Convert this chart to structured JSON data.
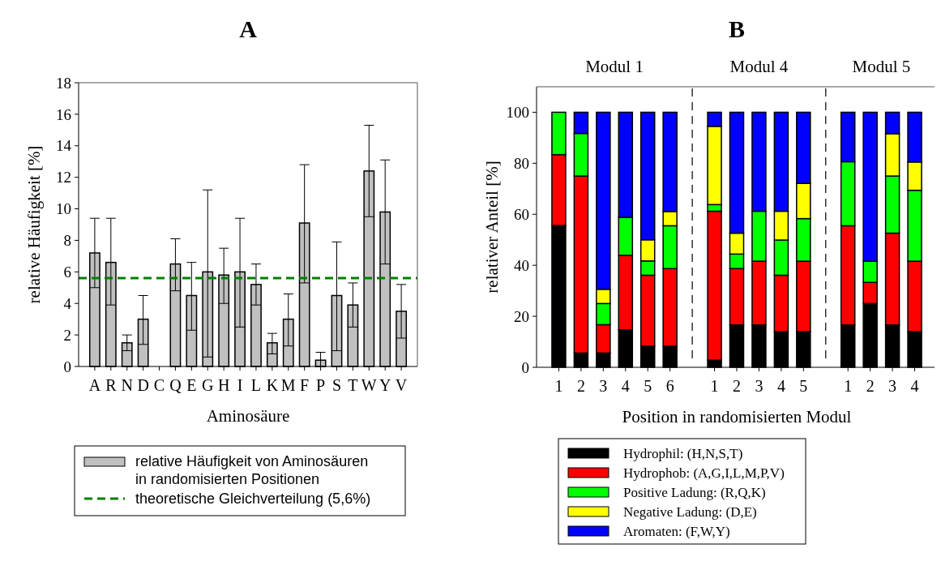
{
  "chart_data": [
    {
      "type": "bar",
      "title": "A",
      "xlabel": "Aminosäure",
      "ylabel": "relative Häufigkeit [%]",
      "categories": [
        "A",
        "R",
        "N",
        "D",
        "C",
        "Q",
        "E",
        "G",
        "H",
        "I",
        "L",
        "K",
        "M",
        "F",
        "P",
        "S",
        "T",
        "W",
        "Y",
        "V"
      ],
      "series": [
        {
          "name": "relative Häufigkeit von Aminosäuren in randomisierten Positionen",
          "color": "#c0c0c0",
          "values": [
            7.2,
            6.6,
            1.5,
            3.0,
            0,
            6.5,
            4.5,
            6.0,
            5.8,
            6.0,
            5.2,
            1.5,
            3.0,
            9.1,
            0.4,
            4.5,
            3.9,
            12.4,
            9.8,
            3.5
          ],
          "errors": [
            [
              5.0,
              9.4
            ],
            [
              3.9,
              9.4
            ],
            [
              1.0,
              2.0
            ],
            [
              1.4,
              4.5
            ],
            null,
            [
              4.8,
              8.1
            ],
            [
              2.3,
              6.6
            ],
            [
              0.6,
              11.2
            ],
            [
              4.0,
              7.5
            ],
            [
              2.5,
              9.4
            ],
            [
              3.9,
              6.5
            ],
            [
              0.8,
              2.1
            ],
            [
              1.3,
              4.6
            ],
            [
              5.3,
              12.8
            ],
            [
              0,
              0.9
            ],
            [
              1.0,
              7.9
            ],
            [
              2.5,
              5.3
            ],
            [
              9.5,
              15.3
            ],
            [
              6.5,
              13.1
            ],
            [
              1.8,
              5.2
            ]
          ]
        }
      ],
      "ref_lines": [
        {
          "axis": "y",
          "value": 5.6,
          "label": "theoretische Gleichverteilung (5,6%)",
          "color": "#008000",
          "line_style": "dashed"
        }
      ],
      "ylim": [
        0,
        18
      ],
      "yticks": [
        0,
        2,
        4,
        6,
        8,
        10,
        12,
        14,
        16,
        18
      ],
      "grid": false,
      "legend": "bottom"
    },
    {
      "type": "bar",
      "title": "B",
      "xlabel": "Position in randomisierten Modul",
      "ylabel": "relativer Anteil [%]",
      "stacked": true,
      "categories": [
        "1",
        "2",
        "3",
        "4",
        "5",
        "6",
        null,
        "1",
        "2",
        "3",
        "4",
        "5",
        null,
        "1",
        "2",
        "3",
        "4"
      ],
      "series": [
        {
          "name": "Hydrophil: (H,N,S,T)",
          "color": "#000000",
          "values": [
            55.6,
            5.6,
            5.6,
            14.7,
            8.3,
            8.3,
            null,
            2.8,
            16.6,
            16.6,
            14,
            14,
            null,
            16.6,
            25,
            16.6,
            14
          ]
        },
        {
          "name": "Hydrophob: (A,G,I,L,M,P,V)",
          "color": "#ff0000",
          "values": [
            27.8,
            69.4,
            11.1,
            29.2,
            27.8,
            30.4,
            null,
            58.4,
            22.1,
            25,
            22.1,
            27.6,
            null,
            38.9,
            8.3,
            36,
            27.6
          ]
        },
        {
          "name": "Positive Ladung: (R,Q,K)",
          "color": "#00ff00",
          "values": [
            16.6,
            16.7,
            8.3,
            14.9,
            5.6,
            16.8,
            null,
            2.6,
            5.7,
            19.6,
            13.8,
            16.7,
            null,
            25.1,
            8.3,
            22.4,
            27.8
          ]
        },
        {
          "name": "Negative Ladung: (D,E)",
          "color": "#ffff00",
          "values": [
            0,
            0,
            5.6,
            0,
            8.3,
            5.6,
            null,
            30.7,
            8.2,
            0,
            11.3,
            13.8,
            null,
            0,
            0,
            16.6,
            11.1
          ]
        },
        {
          "name": "Aromaten: (F,W,Y)",
          "color": "#0000ff",
          "values": [
            0,
            8.3,
            69.4,
            41.2,
            50,
            38.9,
            null,
            5.5,
            47.4,
            38.8,
            38.8,
            27.9,
            null,
            19.4,
            58.4,
            8.4,
            19.5
          ]
        }
      ],
      "annotations": [
        "Modul 1",
        "Modul 4",
        "Modul 5"
      ],
      "ylim": [
        0,
        110
      ],
      "yticks": [
        0,
        20,
        40,
        60,
        80,
        100
      ],
      "grid": false,
      "legend": "bottom"
    }
  ]
}
